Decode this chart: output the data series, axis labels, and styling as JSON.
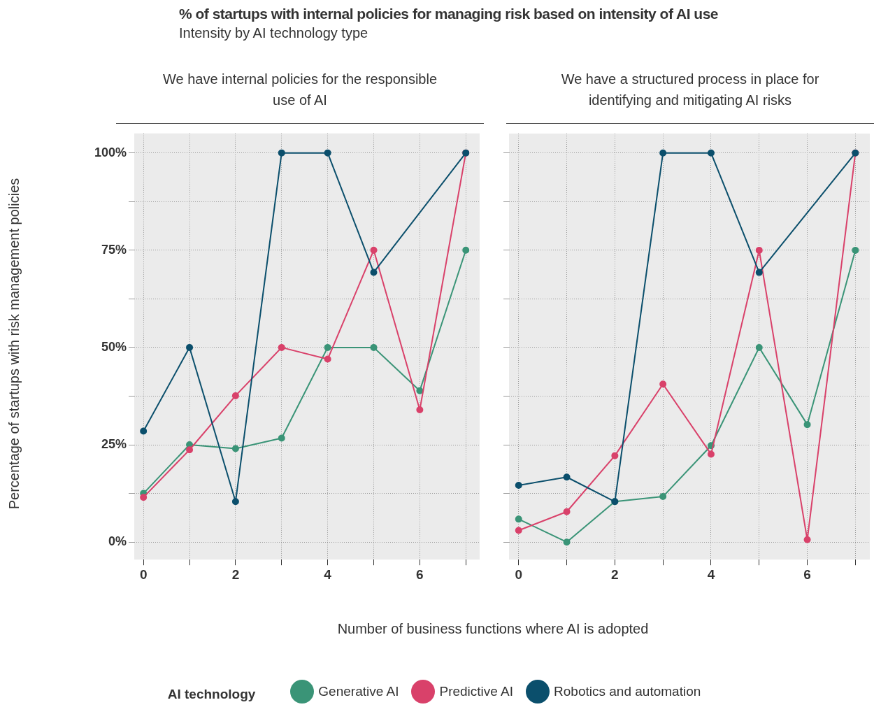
{
  "chart_data": [
    {
      "type": "line",
      "title": "We have internal policies for the responsible use of AI",
      "annotations": [
        "% of startups with internal policies for managing risk based on intensity of AI use",
        "Intensity by AI technology type"
      ],
      "xlabel": "Number of business functions where AI is adopted",
      "ylabel": "Percentage of startups with risk management policies",
      "legend_title": "AI technology",
      "legend": "bottom",
      "marker": "circle",
      "grid": true,
      "x": [
        0,
        1,
        2,
        3,
        4,
        5,
        6,
        7
      ],
      "xlim": [
        -0.2,
        7.3
      ],
      "xticks": [
        0,
        {
          "value": 1,
          "label": null
        },
        2,
        {
          "value": 3,
          "label": null
        },
        4,
        {
          "value": 5,
          "label": null
        },
        6,
        {
          "value": 7,
          "label": null
        }
      ],
      "ylim": [
        -4.5,
        105
      ],
      "yticks": [
        {
          "value": 0,
          "label": "0%"
        },
        {
          "value": 12.5,
          "label": null
        },
        {
          "value": 25,
          "label": "25%"
        },
        {
          "value": 37.5,
          "label": null
        },
        {
          "value": 50,
          "label": "50%"
        },
        {
          "value": 62.5,
          "label": null
        },
        {
          "value": 75,
          "label": "75%"
        },
        {
          "value": 87.5,
          "label": null
        },
        {
          "value": 100,
          "label": "100%"
        }
      ],
      "series": [
        {
          "name": "Generative AI",
          "color": "#3a9477",
          "values": [
            12.5,
            25,
            24,
            26.7,
            50,
            50,
            38.9,
            75
          ]
        },
        {
          "name": "Predictive AI",
          "color": "#d9416a",
          "values": [
            11.5,
            23.7,
            37.6,
            50,
            47,
            75,
            34,
            100
          ]
        },
        {
          "name": "Robotics and automation",
          "color": "#0b4f6c",
          "x": [
            0,
            1,
            2,
            3,
            4,
            5,
            7
          ],
          "values": [
            28.5,
            50,
            10.4,
            100,
            100,
            69.3,
            100
          ]
        }
      ]
    },
    {
      "type": "line",
      "title": "We have a structured process in place for identifying and mitigating AI risks",
      "marker": "circle",
      "grid": true,
      "tick_labels": "x",
      "x": [
        0,
        1,
        2,
        3,
        4,
        5,
        6,
        7
      ],
      "xlim": [
        -0.2,
        7.3
      ],
      "xticks": [
        0,
        {
          "value": 1,
          "label": null
        },
        2,
        {
          "value": 3,
          "label": null
        },
        4,
        {
          "value": 5,
          "label": null
        },
        6,
        {
          "value": 7,
          "label": null
        }
      ],
      "ylim": [
        -4.5,
        105
      ],
      "yticks": [
        0,
        12.5,
        25,
        37.5,
        50,
        62.5,
        75,
        87.5,
        100
      ],
      "series": [
        {
          "color": "#3a9477",
          "values": [
            5.9,
            0,
            10.4,
            11.7,
            24.8,
            50,
            30.2,
            75
          ]
        },
        {
          "color": "#d9416a",
          "values": [
            3,
            7.8,
            22.2,
            40.6,
            22.6,
            75,
            0.6,
            100
          ]
        },
        {
          "color": "#0b4f6c",
          "x": [
            0,
            1,
            2,
            3,
            4,
            5,
            7
          ],
          "values": [
            14.6,
            16.7,
            10.4,
            100,
            100,
            69.3,
            100
          ]
        }
      ]
    }
  ]
}
